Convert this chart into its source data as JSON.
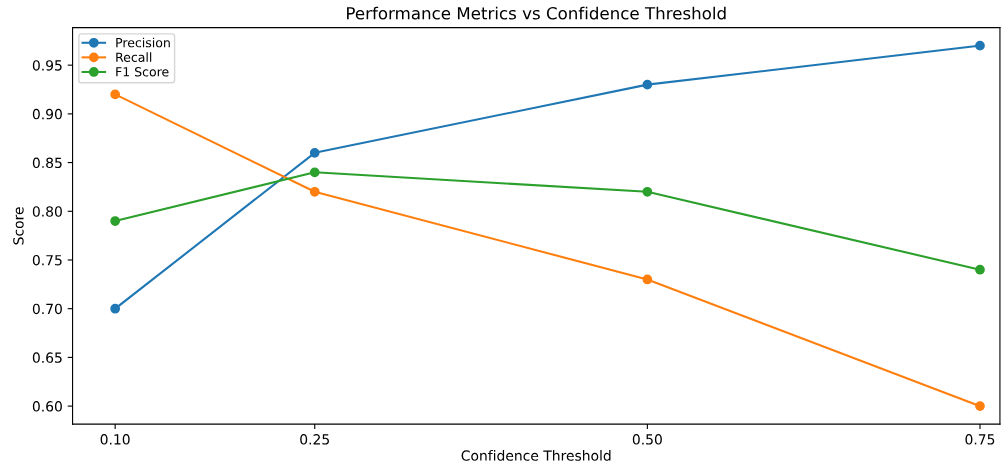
{
  "chart_data": {
    "type": "line",
    "title": "Performance Metrics vs Confidence Threshold",
    "xlabel": "Confidence Threshold",
    "ylabel": "Score",
    "x": [
      0.1,
      0.25,
      0.5,
      0.75
    ],
    "series": [
      {
        "name": "Precision",
        "color": "#1f77b4",
        "values": [
          0.7,
          0.86,
          0.93,
          0.97
        ]
      },
      {
        "name": "Recall",
        "color": "#ff7f0e",
        "values": [
          0.92,
          0.82,
          0.73,
          0.6
        ]
      },
      {
        "name": "F1 Score",
        "color": "#2ca02c",
        "values": [
          0.79,
          0.84,
          0.82,
          0.74
        ]
      }
    ],
    "xlim": [
      0.068,
      0.765
    ],
    "ylim": [
      0.5815,
      0.9885
    ],
    "xticks": [
      {
        "value": 0.1,
        "label": "0.10"
      },
      {
        "value": 0.25,
        "label": "0.25"
      },
      {
        "value": 0.5,
        "label": "0.50"
      },
      {
        "value": 0.75,
        "label": "0.75"
      }
    ],
    "yticks": [
      {
        "value": 0.6,
        "label": "0.60"
      },
      {
        "value": 0.65,
        "label": "0.65"
      },
      {
        "value": 0.7,
        "label": "0.70"
      },
      {
        "value": 0.75,
        "label": "0.75"
      },
      {
        "value": 0.8,
        "label": "0.80"
      },
      {
        "value": 0.85,
        "label": "0.85"
      },
      {
        "value": 0.9,
        "label": "0.90"
      },
      {
        "value": 0.95,
        "label": "0.95"
      }
    ],
    "legend": "top left",
    "marker": "circle",
    "line_style": "solid",
    "grid": false
  }
}
